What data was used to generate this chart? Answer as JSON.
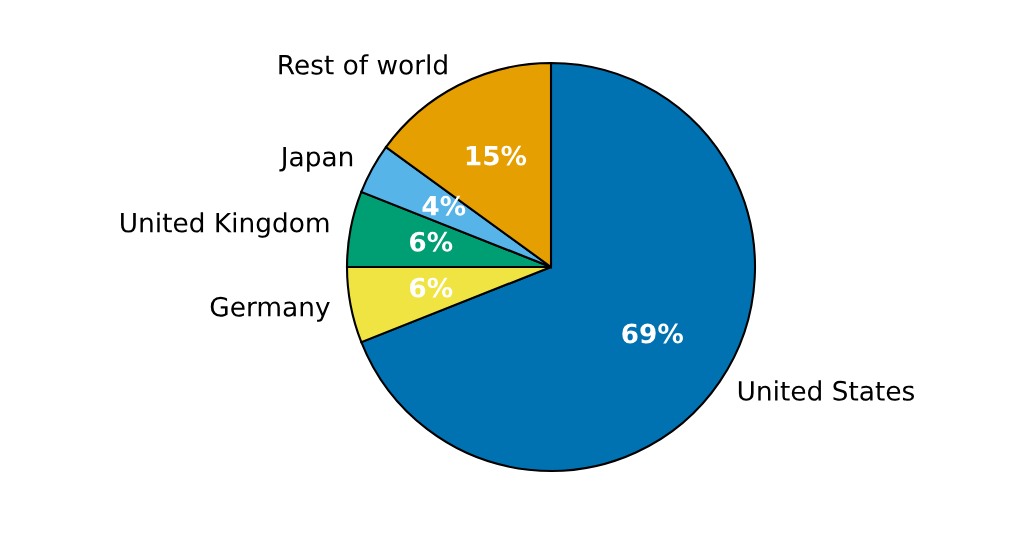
{
  "chart_data": {
    "type": "pie",
    "categories": [
      "United States",
      "Germany",
      "United Kingdom",
      "Japan",
      "Rest of world"
    ],
    "values": [
      69,
      6,
      6,
      4,
      15
    ],
    "colors": [
      "#0072b2",
      "#f0e442",
      "#009e73",
      "#56b4e9",
      "#e69f00"
    ],
    "value_labels": [
      "69%",
      "6%",
      "6%",
      "4%",
      "15%"
    ]
  }
}
